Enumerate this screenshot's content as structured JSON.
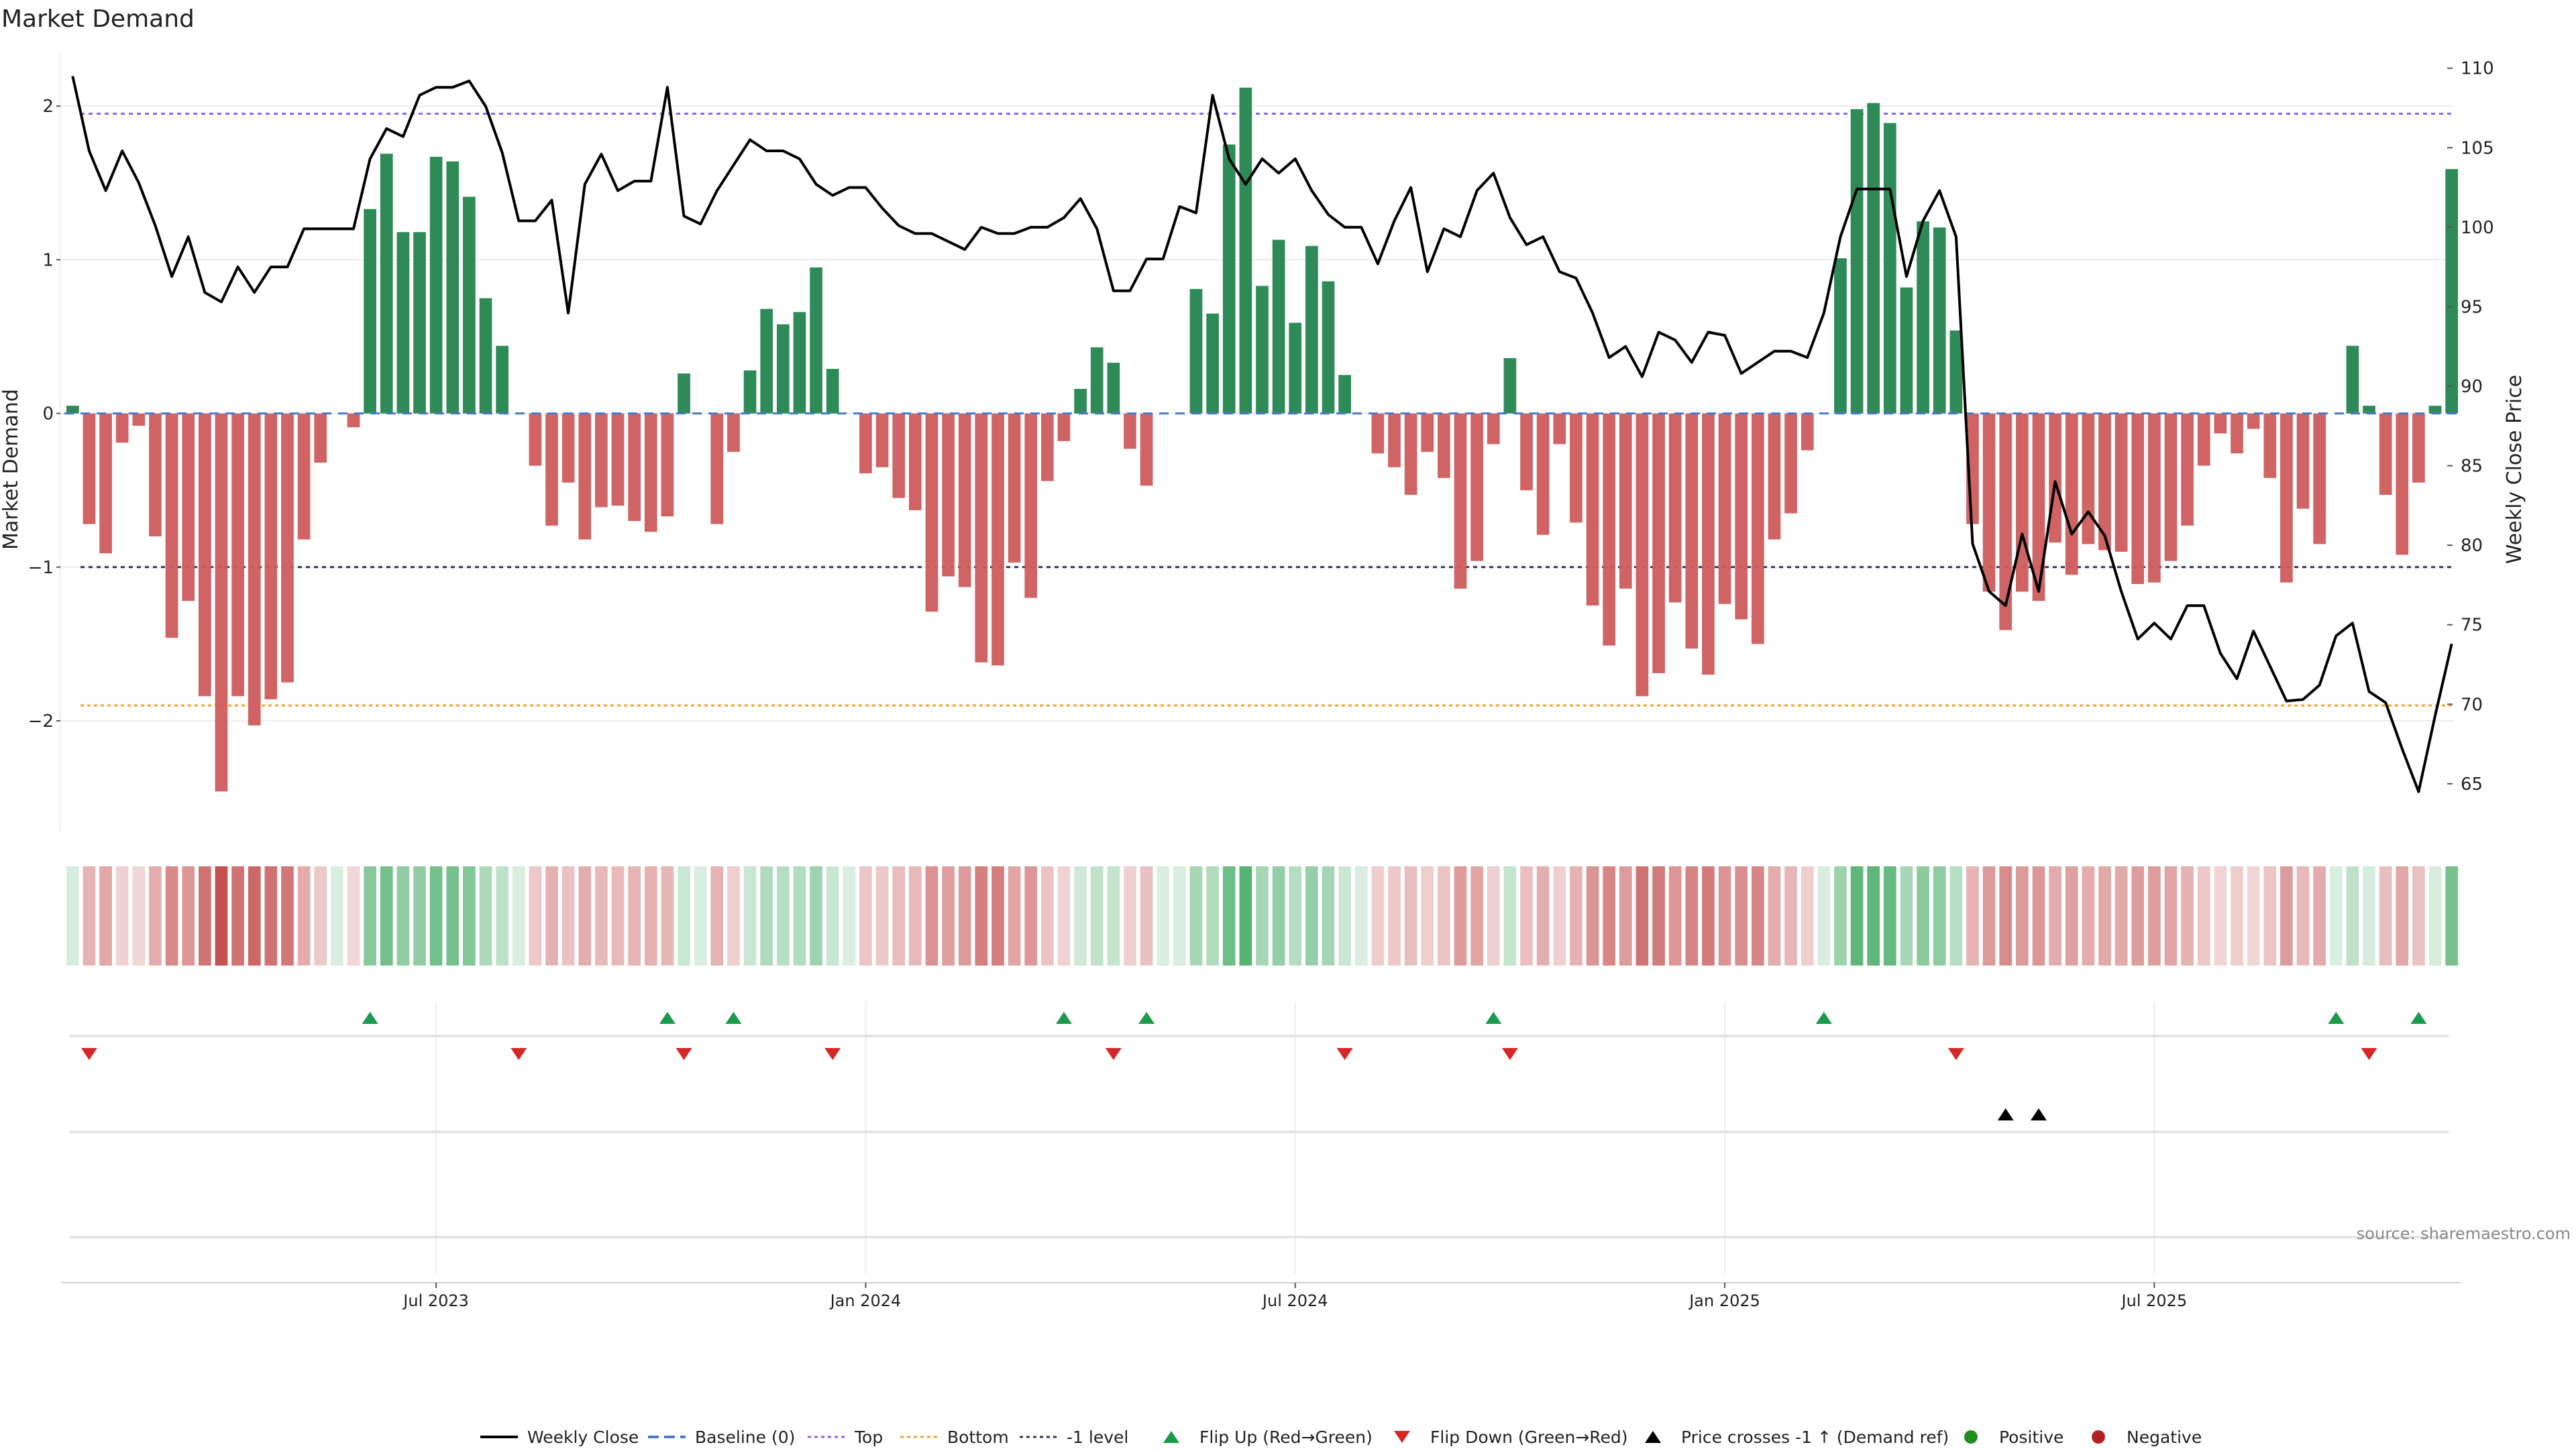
{
  "title": "Market Demand",
  "source": "source: sharemaestro.com",
  "colors": {
    "positive": "#2e8b57",
    "negative": "#cd5c5c",
    "price": "#000000",
    "top_line": "#7b68ee",
    "bottom_line": "#f0a030",
    "neg1_line": "#333355",
    "baseline": "#4a78c8",
    "flip_up": "#1a9a4a",
    "flip_down": "#d62728"
  },
  "chart_data": {
    "type": "bar",
    "title": "Market Demand",
    "ylabel": "Market Demand",
    "ylabel_right": "Weekly Close Price",
    "ylim": [
      -2.72,
      2.35
    ],
    "ylim_right": [
      62.0,
      111.0
    ],
    "yticks": [
      {
        "value": 2,
        "label": "2"
      },
      {
        "value": 1,
        "label": "1"
      },
      {
        "value": 0,
        "label": "0"
      },
      {
        "value": -1,
        "label": "−1"
      },
      {
        "value": -2,
        "label": "−2"
      }
    ],
    "yticks_right": [
      {
        "value": 110,
        "label": "110"
      },
      {
        "value": 105,
        "label": "105"
      },
      {
        "value": 100,
        "label": "100"
      },
      {
        "value": 95,
        "label": "95"
      },
      {
        "value": 90,
        "label": "90"
      },
      {
        "value": 85,
        "label": "85"
      },
      {
        "value": 80,
        "label": "80"
      },
      {
        "value": 75,
        "label": "75"
      },
      {
        "value": 70,
        "label": "70"
      },
      {
        "value": 65,
        "label": "65"
      }
    ],
    "xticks": [
      {
        "week": 22,
        "label": "Jul 2023"
      },
      {
        "week": 48,
        "label": "Jan 2024"
      },
      {
        "week": 74,
        "label": "Jul 2024"
      },
      {
        "week": 100,
        "label": "Jan 2025"
      },
      {
        "week": 126,
        "label": "Jul 2025"
      }
    ],
    "reference_lines": [
      {
        "name": "Top",
        "value": 1.95
      },
      {
        "name": "Bottom",
        "value": -1.9
      },
      {
        "name": "-1 level",
        "value": -1.0
      }
    ],
    "demand": [
      0.05,
      -0.72,
      -0.91,
      -0.19,
      -0.08,
      -0.8,
      -1.46,
      -1.22,
      -1.84,
      -2.46,
      -1.84,
      -2.03,
      -1.86,
      -1.75,
      -0.82,
      -0.32,
      0.0,
      -0.09,
      1.33,
      1.69,
      1.18,
      1.18,
      1.67,
      1.64,
      1.41,
      0.75,
      0.44,
      0.0,
      -0.34,
      -0.73,
      -0.45,
      -0.82,
      -0.61,
      -0.6,
      -0.7,
      -0.77,
      -0.67,
      0.26,
      0.0,
      -0.72,
      -0.25,
      0.28,
      0.68,
      0.58,
      0.66,
      0.95,
      0.29,
      0.0,
      -0.39,
      -0.35,
      -0.55,
      -0.63,
      -1.29,
      -1.06,
      -1.13,
      -1.62,
      -1.64,
      -0.97,
      -1.2,
      -0.44,
      -0.18,
      0.16,
      0.43,
      0.33,
      -0.23,
      -0.47,
      0.0,
      0.0,
      0.81,
      0.65,
      1.75,
      2.12,
      0.83,
      1.13,
      0.59,
      1.09,
      0.86,
      0.25,
      0.0,
      -0.26,
      -0.35,
      -0.53,
      -0.25,
      -0.42,
      -1.14,
      -0.96,
      -0.2,
      0.36,
      -0.5,
      -0.79,
      -0.2,
      -0.71,
      -1.25,
      -1.51,
      -1.14,
      -1.84,
      -1.69,
      -1.23,
      -1.53,
      -1.7,
      -1.24,
      -1.34,
      -1.5,
      -0.82,
      -0.65,
      -0.24,
      0.0,
      1.01,
      1.98,
      2.02,
      1.89,
      0.82,
      1.25,
      1.21,
      0.54,
      -0.72,
      -1.16,
      -1.41,
      -1.16,
      -1.22,
      -0.84,
      -1.05,
      -0.85,
      -0.89,
      -0.9,
      -1.11,
      -1.1,
      -0.96,
      -0.73,
      -0.34,
      -0.13,
      -0.26,
      -0.1,
      -0.42,
      -1.1,
      -0.62,
      -0.85,
      0.0,
      0.44,
      0.05,
      -0.53,
      -0.92,
      -0.45,
      0.05,
      1.59
    ],
    "price": [
      109.5,
      104.8,
      102.3,
      104.8,
      102.8,
      100.1,
      96.9,
      99.4,
      95.9,
      95.3,
      97.5,
      95.9,
      97.5,
      97.5,
      99.9,
      99.9,
      99.9,
      99.9,
      104.3,
      106.2,
      105.7,
      108.3,
      108.8,
      108.8,
      109.2,
      107.6,
      104.7,
      100.4,
      100.4,
      101.7,
      94.6,
      102.7,
      104.6,
      102.3,
      102.9,
      102.9,
      108.8,
      100.7,
      100.2,
      102.3,
      103.9,
      105.5,
      104.8,
      104.8,
      104.3,
      102.7,
      102.0,
      102.5,
      102.5,
      101.2,
      100.1,
      99.6,
      99.6,
      99.1,
      98.6,
      100.0,
      99.6,
      99.6,
      100.0,
      100.0,
      100.6,
      101.8,
      99.9,
      96.0,
      96.0,
      98.0,
      98.0,
      101.3,
      100.9,
      108.3,
      104.3,
      102.7,
      104.3,
      103.4,
      104.3,
      102.3,
      100.8,
      100.0,
      100.0,
      97.7,
      100.4,
      102.5,
      97.2,
      99.9,
      99.4,
      102.3,
      103.4,
      100.6,
      98.9,
      99.4,
      97.2,
      96.8,
      94.6,
      91.8,
      92.5,
      90.6,
      93.4,
      92.9,
      91.5,
      93.4,
      93.2,
      90.8,
      91.5,
      92.2,
      92.2,
      91.8,
      94.6,
      99.4,
      102.4,
      102.4,
      102.4,
      96.9,
      100.4,
      102.3,
      99.4,
      80.1,
      77.1,
      76.2,
      80.7,
      77.1,
      84.0,
      80.7,
      82.1,
      80.6,
      77.1,
      74.1,
      75.1,
      74.1,
      76.2,
      76.2,
      73.2,
      71.6,
      74.6,
      72.4,
      70.2,
      70.3,
      71.2,
      74.3,
      75.1,
      70.8,
      70.1,
      67.2,
      64.5,
      69.3,
      73.8
    ],
    "flip_up": [
      18,
      36,
      40,
      60,
      65,
      86,
      106,
      137,
      142
    ],
    "flip_down": [
      1,
      27,
      37,
      46,
      63,
      77,
      87,
      114,
      139
    ],
    "price_cross": [
      117,
      119
    ],
    "legend": [
      {
        "key": "weekly-close",
        "label": "Weekly Close"
      },
      {
        "key": "baseline",
        "label": "Baseline (0)"
      },
      {
        "key": "top",
        "label": "Top"
      },
      {
        "key": "bottom",
        "label": "Bottom"
      },
      {
        "key": "neg1",
        "label": "-1 level"
      },
      {
        "key": "flip-up",
        "label": "Flip Up (Red→Green)"
      },
      {
        "key": "flip-down",
        "label": "Flip Down (Green→Red)"
      },
      {
        "key": "price-cross",
        "label": "Price crosses -1 ↑ (Demand ref)"
      },
      {
        "key": "positive",
        "label": "Positive"
      },
      {
        "key": "negative",
        "label": "Negative"
      }
    ]
  }
}
